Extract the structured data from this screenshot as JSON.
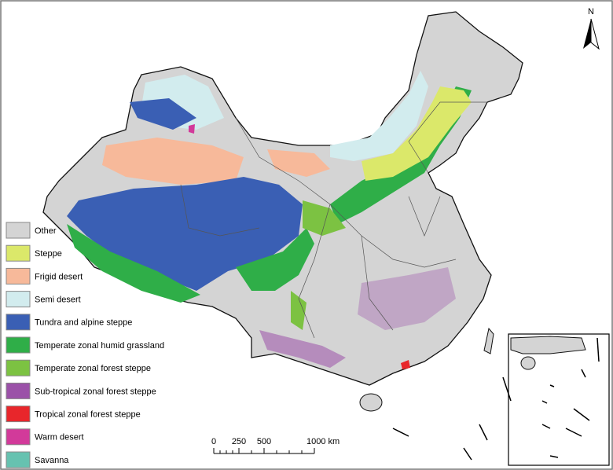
{
  "legend": {
    "items": [
      {
        "label": "Other",
        "color": "#d4d4d4"
      },
      {
        "label": "Steppe",
        "color": "#dbe86a"
      },
      {
        "label": "Frigid desert",
        "color": "#f7b99a"
      },
      {
        "label": "Semi desert",
        "color": "#d2ecee"
      },
      {
        "label": "Tundra and alpine steppe",
        "color": "#3a5fb4"
      },
      {
        "label": "Temperate zonal humid grassland",
        "color": "#2fae48"
      },
      {
        "label": "Temperate zonal forest steppe",
        "color": "#7cc242"
      },
      {
        "label": "Sub-tropical zonal forest steppe",
        "color": "#9b51a8"
      },
      {
        "label": "Tropical zonal forest steppe",
        "color": "#e8262b"
      },
      {
        "label": "Warm desert",
        "color": "#d23a9a"
      },
      {
        "label": "Savanna",
        "color": "#66c2b0"
      }
    ]
  },
  "scale_bar": {
    "labels": [
      "0",
      "250",
      "500",
      "1000 km"
    ]
  },
  "north_arrow": {
    "label": "N"
  }
}
